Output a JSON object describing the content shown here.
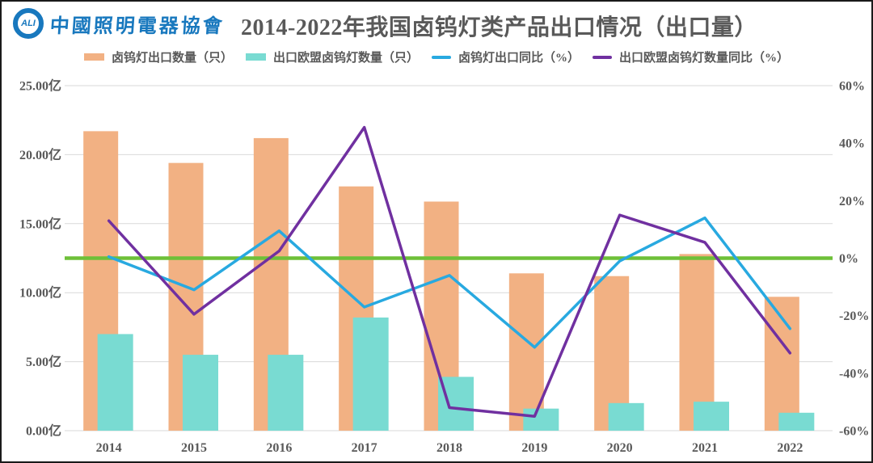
{
  "header": {
    "logo": {
      "ring_text": "ALI",
      "org_name": "中國照明電器協會"
    },
    "title": "2014-2022年我国卤钨灯类产品出口情况（出口量）"
  },
  "legend": [
    {
      "label": "卤钨灯出口数量（只）",
      "swatch": "bar",
      "color": "#F2B183"
    },
    {
      "label": "出口欧盟卤钨灯数量（只）",
      "swatch": "bar",
      "color": "#79DBD2"
    },
    {
      "label": "卤钨灯出口同比（%）",
      "swatch": "line",
      "color": "#28A9E0"
    },
    {
      "label": "出口欧盟卤钨灯数量同比（%）",
      "swatch": "line",
      "color": "#7030A0"
    }
  ],
  "chart_data": {
    "type": "bar+line combo, dual axis",
    "title": "2014-2022年我国卤钨灯类产品出口情况（出口量）",
    "categories": [
      "2014",
      "2015",
      "2016",
      "2017",
      "2018",
      "2019",
      "2020",
      "2021",
      "2022"
    ],
    "series": [
      {
        "name": "卤钨灯出口数量（只）",
        "type": "bar",
        "axis": "left",
        "color": "#F2B183",
        "values": [
          21.7,
          19.4,
          21.2,
          17.7,
          16.6,
          11.4,
          11.2,
          12.8,
          9.7
        ],
        "unit": "亿只"
      },
      {
        "name": "出口欧盟卤钨灯数量（只）",
        "type": "bar",
        "axis": "left",
        "color": "#79DBD2",
        "values": [
          7.0,
          5.5,
          5.5,
          8.2,
          3.9,
          1.6,
          2.0,
          2.1,
          1.3
        ],
        "unit": "亿只"
      },
      {
        "name": "卤钨灯出口同比（%）",
        "type": "line",
        "axis": "right",
        "color": "#28A9E0",
        "values": [
          0.5,
          -11,
          9.5,
          -17,
          -6,
          -31,
          -1,
          14,
          -24.5
        ],
        "unit": "%"
      },
      {
        "name": "出口欧盟卤钨灯数量同比（%）",
        "type": "line",
        "axis": "right",
        "color": "#7030A0",
        "values": [
          13,
          -19.5,
          2.5,
          45.5,
          -52,
          -55,
          15,
          5.5,
          -33
        ],
        "unit": "%"
      }
    ],
    "left_axis": {
      "labels": [
        "25.00亿",
        "20.00亿",
        "15.00亿",
        "10.00亿",
        "5.00亿",
        "0.00亿"
      ],
      "min": 0,
      "max": 25
    },
    "right_axis": {
      "labels": [
        "60%",
        "40%",
        "20%",
        "0%",
        "-20%",
        "-40%",
        "-60%"
      ],
      "min": -60,
      "max": 60
    },
    "zero_line_color": "#6EC038",
    "grid_color": "#D9D9D9",
    "grid": true,
    "legend_position": "top"
  },
  "colors": {
    "accent_logo_blue": "#1878BE",
    "text_gray": "#595959",
    "bar_orange": "#F2B183",
    "bar_teal": "#79DBD2",
    "line_blue": "#28A9E0",
    "line_purple": "#7030A0",
    "zero_line_green": "#6EC038"
  }
}
